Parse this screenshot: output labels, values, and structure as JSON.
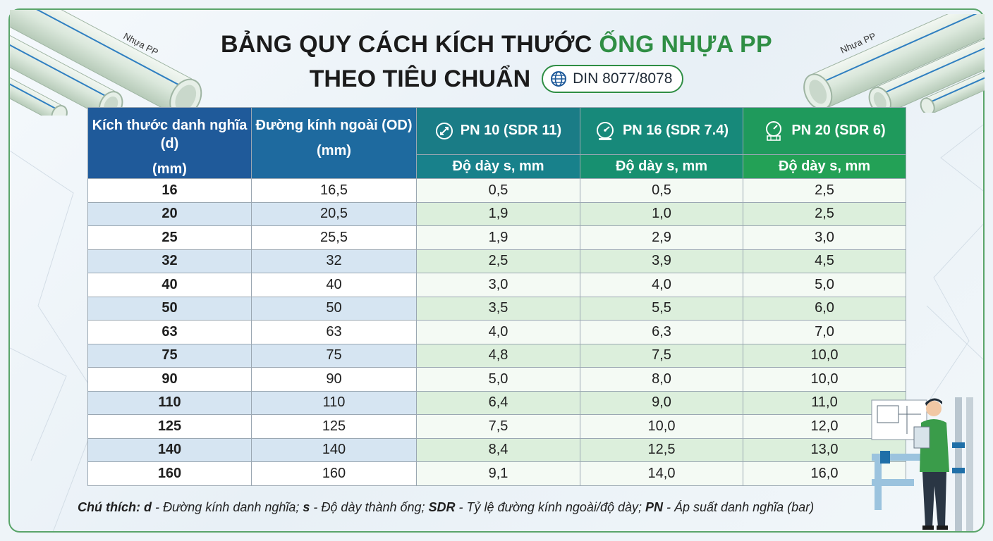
{
  "title": {
    "line1_prefix": "BẢNG QUY CÁCH KÍCH THƯỚC ",
    "line1_highlight": "ỐNG NHỰA PP",
    "line2": "THEO TIÊU CHUẨN",
    "standard": "DIN 8077/8078"
  },
  "pipe_label": "Nhựa PP",
  "colors": {
    "accent_green": "#2f8e44",
    "header_blue": "#1f5a9a"
  },
  "table": {
    "headers": {
      "nominal": "Kích thước danh nghĩa (d)",
      "nominal_unit": "(mm)",
      "outer": "Đường kính ngoài (OD)",
      "outer_unit": "(mm)",
      "pn10": "PN 10 (SDR 11)",
      "pn16": "PN 16 (SDR 7.4)",
      "pn20": "PN 20 (SDR 6)",
      "thickness": "Độ dày s, mm"
    },
    "rows": [
      [
        "16",
        "16,5",
        "0,5",
        "0,5",
        "2,5"
      ],
      [
        "20",
        "20,5",
        "1,9",
        "1,0",
        "2,5"
      ],
      [
        "25",
        "25,5",
        "1,9",
        "2,9",
        "3,0"
      ],
      [
        "32",
        "32",
        "2,5",
        "3,9",
        "4,5"
      ],
      [
        "40",
        "40",
        "3,0",
        "4,0",
        "5,0"
      ],
      [
        "50",
        "50",
        "3,5",
        "5,5",
        "6,0"
      ],
      [
        "63",
        "63",
        "4,0",
        "6,3",
        "7,0"
      ],
      [
        "75",
        "75",
        "4,8",
        "7,5",
        "10,0"
      ],
      [
        "90",
        "90",
        "5,0",
        "8,0",
        "10,0"
      ],
      [
        "110",
        "110",
        "6,4",
        "9,0",
        "11,0"
      ],
      [
        "125",
        "125",
        "7,5",
        "10,0",
        "12,0"
      ],
      [
        "140",
        "140",
        "8,4",
        "12,5",
        "13,0"
      ],
      [
        "160",
        "160",
        "9,1",
        "14,0",
        "16,0"
      ]
    ]
  },
  "note": {
    "prefix": "Chú thích: ",
    "d_key": "d",
    "d_text": " - Đường kính danh nghĩa; ",
    "s_key": "s",
    "s_text": " - Độ dày thành ống; ",
    "sdr_key": "SDR",
    "sdr_text": " - Tỷ lệ đường kính ngoài/độ dày; ",
    "pn_key": "PN",
    "pn_text": " - Áp suất danh nghĩa (bar)"
  }
}
